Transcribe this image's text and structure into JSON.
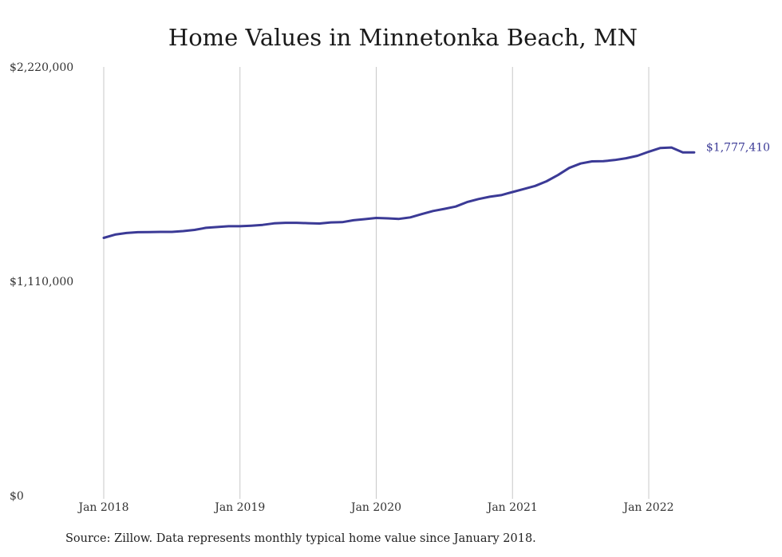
{
  "chart_data": {
    "type": "line",
    "title": "Home Values in Minnetonka Beach, MN",
    "xlabel": "",
    "ylabel": "",
    "ylim": [
      0,
      2220000
    ],
    "y_ticks": [
      "$2,220,000",
      "$1,110,000",
      "$0"
    ],
    "y_tick_values": [
      2220000,
      1110000,
      0
    ],
    "x_ticks": [
      "Jan 2018",
      "Jan 2019",
      "Jan 2020",
      "Jan 2021",
      "Jan 2022"
    ],
    "x_tick_dates": [
      "2018-01",
      "2019-01",
      "2020-01",
      "2021-01",
      "2022-01"
    ],
    "grid": "vertical",
    "line_color": "#3b3a96",
    "grid_color": "#c8c8c8",
    "end_label": "$1,777,410",
    "series": [
      {
        "x": [
          "2018-01",
          "2018-02",
          "2018-03",
          "2018-04",
          "2018-05",
          "2018-06",
          "2018-07",
          "2018-08",
          "2018-09",
          "2018-10",
          "2018-11",
          "2018-12",
          "2019-01",
          "2019-02",
          "2019-03",
          "2019-04",
          "2019-05",
          "2019-06",
          "2019-07",
          "2019-08",
          "2019-09",
          "2019-10",
          "2019-11",
          "2019-12",
          "2020-01",
          "2020-02",
          "2020-03",
          "2020-04",
          "2020-05",
          "2020-06",
          "2020-07",
          "2020-08",
          "2020-09",
          "2020-10",
          "2020-11",
          "2020-12",
          "2021-01",
          "2021-02",
          "2021-03",
          "2021-04",
          "2021-05",
          "2021-06",
          "2021-07",
          "2021-08",
          "2021-09",
          "2021-10",
          "2021-11",
          "2021-12",
          "2022-01",
          "2022-02",
          "2022-03",
          "2022-04",
          "2022-05"
        ],
        "values": [
          1335000,
          1352000,
          1360000,
          1364000,
          1365000,
          1366000,
          1366000,
          1370000,
          1376000,
          1387000,
          1391000,
          1395000,
          1395000,
          1398000,
          1402000,
          1410000,
          1413000,
          1413000,
          1411000,
          1409000,
          1415000,
          1416000,
          1426000,
          1432000,
          1438000,
          1436000,
          1433000,
          1441000,
          1458000,
          1474000,
          1485000,
          1497000,
          1520000,
          1536000,
          1548000,
          1556000,
          1572000,
          1588000,
          1604000,
          1628000,
          1660000,
          1697000,
          1720000,
          1731000,
          1732000,
          1738000,
          1747000,
          1760000,
          1781000,
          1800000,
          1803000,
          1777410,
          1777410
        ]
      }
    ]
  },
  "source_note": "Source: Zillow. Data represents monthly typical home value since January 2018."
}
